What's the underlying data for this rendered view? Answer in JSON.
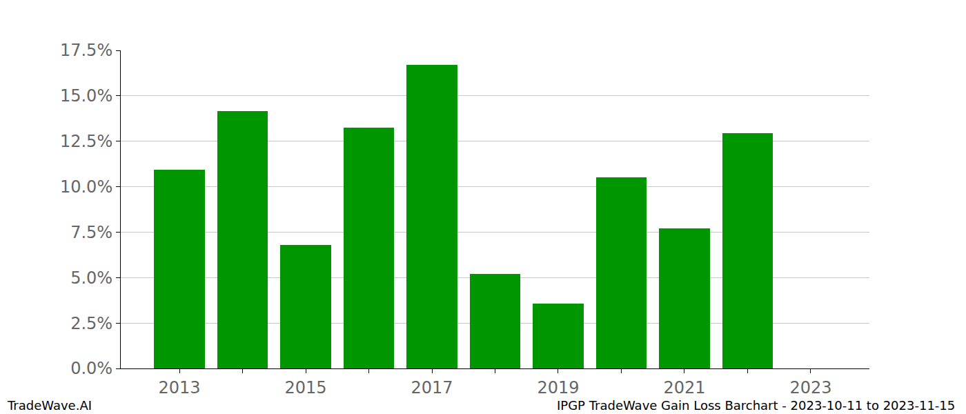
{
  "chart_data": {
    "type": "bar",
    "x": [
      2013,
      2014,
      2015,
      2016,
      2017,
      2018,
      2019,
      2020,
      2021,
      2022
    ],
    "values": [
      10.95,
      14.15,
      6.8,
      13.25,
      16.7,
      5.2,
      3.55,
      10.5,
      7.7,
      12.95
    ],
    "color": "#009600",
    "xlim": [
      2012.07,
      2023.93
    ],
    "xticks": [
      2013,
      2015,
      2017,
      2019,
      2021,
      2023
    ],
    "ylim": [
      0,
      17.5
    ],
    "yticks": [
      {
        "value": 0,
        "label": "0.0%"
      },
      {
        "value": 2.5,
        "label": "2.5%"
      },
      {
        "value": 5,
        "label": "5.0%"
      },
      {
        "value": 7.5,
        "label": "7.5%"
      },
      {
        "value": 10,
        "label": "10.0%"
      },
      {
        "value": 12.5,
        "label": "12.5%"
      },
      {
        "value": 15,
        "label": "15.0%"
      },
      {
        "value": 17.5,
        "label": "17.5%"
      }
    ],
    "grid": true,
    "annotations": [
      "TradeWave.AI",
      "IPGP TradeWave Gain Loss Barchart - 2023-10-11 to 2023-11-15"
    ]
  }
}
